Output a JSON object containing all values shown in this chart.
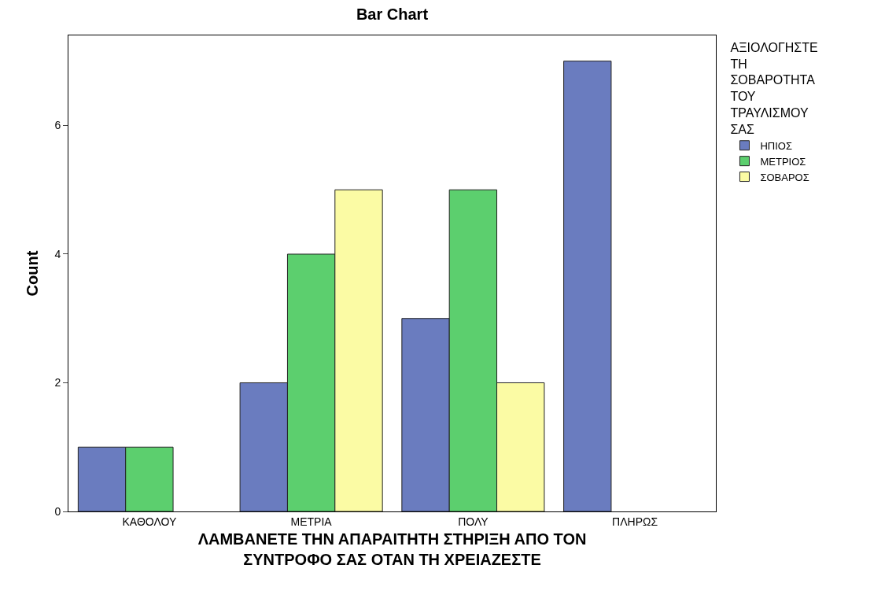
{
  "chart_data": {
    "type": "bar",
    "title": "Bar Chart",
    "xlabel": "ΛΑΜΒΑΝΕΤΕ ΤΗΝ ΑΠΑΡΑΙΤΗΤΗ ΣΤΗΡΙΞΗ ΑΠΟ ΤΟΝ ΣΥΝΤΡΟΦΟ ΣΑΣ ΟΤΑΝ ΤΗ ΧΡΕΙΑΖΕΣΤΕ",
    "ylabel": "Count",
    "legend_title": "ΑΞΙΟΛΟΓΗΣΤΕ ΤΗ ΣΟΒΑΡΟΤΗΤΑ ΤΟΥ ΤΡΑΥΛΙΣΜΟΥ ΣΑΣ",
    "categories": [
      "ΚΑΘΟΛΟΥ",
      "ΜΕΤΡΙΑ",
      "ΠΟΛΥ",
      "ΠΛΗΡΩΣ"
    ],
    "series": [
      {
        "name": "ΗΠΙΟΣ",
        "color": "#6a7cbf",
        "values": [
          1,
          2,
          3,
          7
        ]
      },
      {
        "name": "ΜΕΤΡΙΟΣ",
        "color": "#5ccf6e",
        "values": [
          1,
          4,
          5,
          null
        ]
      },
      {
        "name": "ΣΟΒΑΡΟΣ",
        "color": "#fbfba4",
        "values": [
          null,
          5,
          2,
          null
        ]
      }
    ],
    "ylim": [
      0,
      7.4
    ],
    "yticks": [
      0,
      2,
      4,
      6
    ],
    "legend": "top right"
  }
}
